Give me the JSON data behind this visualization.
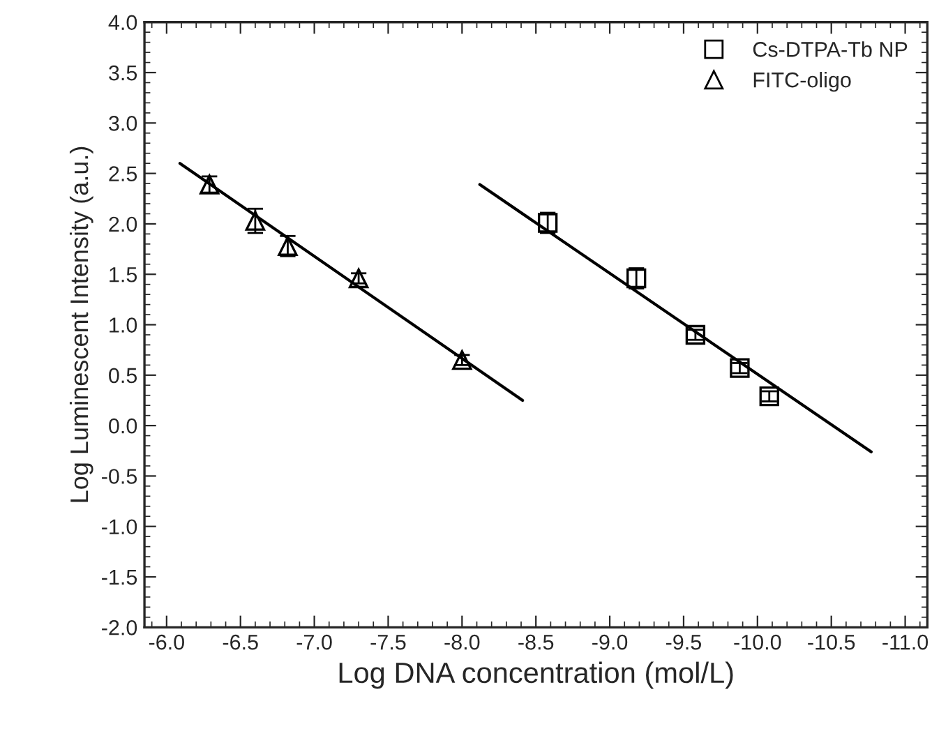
{
  "chart_data": {
    "type": "scatter",
    "xlabel": "Log DNA concentration (mol/L)",
    "ylabel": "Log Luminescent Intensity (a.u.)",
    "xlim": [
      -5.85,
      -11.15
    ],
    "xticks": [
      {
        "value": -6.0,
        "label": "-6.0"
      },
      {
        "value": -6.5,
        "label": "-6.5"
      },
      {
        "value": -7.0,
        "label": "-7.0"
      },
      {
        "value": -7.5,
        "label": "-7.5"
      },
      {
        "value": -8.0,
        "label": "-8.0"
      },
      {
        "value": -8.5,
        "label": "-8.5"
      },
      {
        "value": -9.0,
        "label": "-9.0"
      },
      {
        "value": -9.5,
        "label": "-9.5"
      },
      {
        "value": -10.0,
        "label": "-10.0"
      },
      {
        "value": -10.5,
        "label": "-10.5"
      },
      {
        "value": -11.0,
        "label": "-11.0"
      }
    ],
    "ylim": [
      -2.0,
      4.0
    ],
    "yticks": [
      {
        "value": -2.0,
        "label": "-2.0"
      },
      {
        "value": -1.5,
        "label": "-1.5"
      },
      {
        "value": -1.0,
        "label": "-1.0"
      },
      {
        "value": -0.5,
        "label": "-0.5"
      },
      {
        "value": 0.0,
        "label": "0.0"
      },
      {
        "value": 0.5,
        "label": "0.5"
      },
      {
        "value": 1.0,
        "label": "1.0"
      },
      {
        "value": 1.5,
        "label": "1.5"
      },
      {
        "value": 2.0,
        "label": "2.0"
      },
      {
        "value": 2.5,
        "label": "2.5"
      },
      {
        "value": 3.0,
        "label": "3.0"
      },
      {
        "value": 3.5,
        "label": "3.5"
      },
      {
        "value": 4.0,
        "label": "4.0"
      }
    ],
    "grid": false,
    "legend": "top right",
    "series": [
      {
        "name": "Cs-DTPA-Tb NP",
        "color": "#000000",
        "marker": "square",
        "x": [
          -8.58,
          -9.18,
          -9.58,
          -9.88,
          -10.08
        ],
        "values": [
          2.01,
          1.46,
          0.9,
          0.57,
          0.29
        ],
        "errors": [
          0.1,
          0.1,
          0.05,
          0.05,
          0.05
        ]
      },
      {
        "name": "FITC-oligo",
        "color": "#000000",
        "marker": "triangle",
        "x": [
          -6.29,
          -6.6,
          -6.82,
          -7.3,
          -8.0
        ],
        "values": [
          2.39,
          2.03,
          1.78,
          1.46,
          0.65
        ],
        "errors": [
          0.08,
          0.12,
          0.1,
          0.05,
          0.05
        ]
      },
      {
        "type": "line",
        "color": "#000000",
        "x": [
          -8.12,
          -10.77
        ],
        "values": [
          2.39,
          -0.26
        ]
      },
      {
        "type": "line",
        "color": "#000000",
        "x": [
          -6.09,
          -8.41
        ],
        "values": [
          2.6,
          0.25
        ]
      }
    ]
  }
}
